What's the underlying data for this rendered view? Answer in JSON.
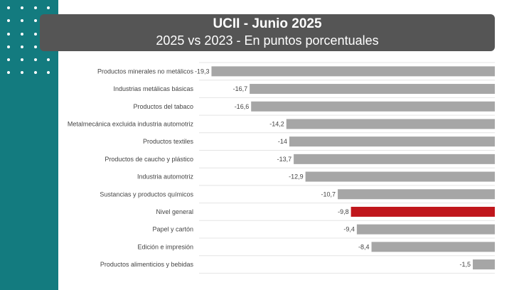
{
  "header": {
    "title": "UCII - Junio 2025",
    "subtitle": "2025 vs 2023 - En puntos porcentuales"
  },
  "colors": {
    "band": "#137b7f",
    "bar": "#a6a6a6",
    "highlight": "#c0161c",
    "header_bg": "#555555"
  },
  "chart_data": {
    "type": "bar",
    "orientation": "horizontal",
    "title": "UCII - Junio 2025",
    "subtitle": "2025 vs 2023 - En puntos porcentuales",
    "xlabel": "",
    "ylabel": "",
    "xlim": [
      -20,
      0
    ],
    "grid": false,
    "highlight_category": "Nivel general",
    "categories": [
      "Productos minerales no metálicos",
      "Industrias metálicas básicas",
      "Productos del tabaco",
      "Metalmecánica excluida industria automotriz",
      "Productos textiles",
      "Productos de caucho y plástico",
      "Industria automotriz",
      "Sustancias y productos químicos",
      "Nivel general",
      "Papel  y cartón",
      "Edición e impresión",
      "Productos alimenticios y bebidas"
    ],
    "values": [
      -19.3,
      -16.7,
      -16.6,
      -14.2,
      -14,
      -13.7,
      -12.9,
      -10.7,
      -9.8,
      -9.4,
      -8.4,
      -1.5
    ],
    "value_labels": [
      "-19,3",
      "-16,7",
      "-16,6",
      "-14,2",
      "-14",
      "-13,7",
      "-12,9",
      "-10,7",
      "-9,8",
      "-9,4",
      "-8,4",
      "-1,5"
    ]
  }
}
